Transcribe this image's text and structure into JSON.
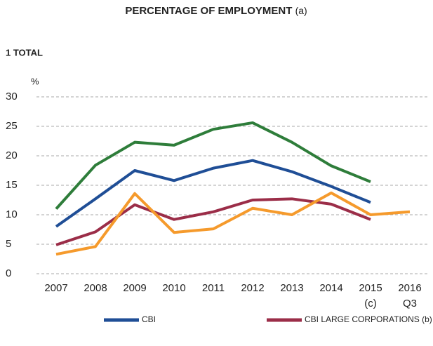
{
  "chart_data": {
    "type": "line",
    "title": "PERCENTAGE OF EMPLOYMENT",
    "title_note": "(a)",
    "subtitle": "1  TOTAL",
    "y_label": "%",
    "categories": [
      "2007",
      "2008",
      "2009",
      "2010",
      "2011",
      "2012",
      "2013",
      "2014",
      "2015",
      "2016"
    ],
    "category_notes": [
      null,
      null,
      null,
      null,
      null,
      null,
      null,
      null,
      "(c)",
      "Q3"
    ],
    "series": [
      {
        "name": "CBI",
        "color": "#1f4e96",
        "values": [
          8.0,
          12.7,
          17.5,
          15.8,
          17.9,
          19.2,
          17.3,
          14.8,
          12.1,
          null
        ]
      },
      {
        "name": "CBI LARGE CORPORATIONS (b)",
        "color": "#9b2d48",
        "values": [
          4.9,
          7.1,
          11.7,
          9.2,
          10.5,
          12.5,
          12.7,
          11.8,
          9.2,
          null
        ]
      },
      {
        "color": "#2e7d3a",
        "values": [
          11.0,
          18.4,
          22.3,
          21.8,
          24.5,
          25.6,
          22.3,
          18.3,
          15.6,
          null
        ]
      },
      {
        "color": "#f59a2c",
        "values": [
          3.3,
          4.6,
          13.6,
          7.0,
          7.6,
          11.1,
          10.0,
          13.7,
          10.0,
          10.5
        ]
      }
    ],
    "ylim": [
      0,
      30
    ],
    "yticks": [
      0,
      5,
      10,
      15,
      20,
      25,
      30
    ],
    "grid": true
  }
}
